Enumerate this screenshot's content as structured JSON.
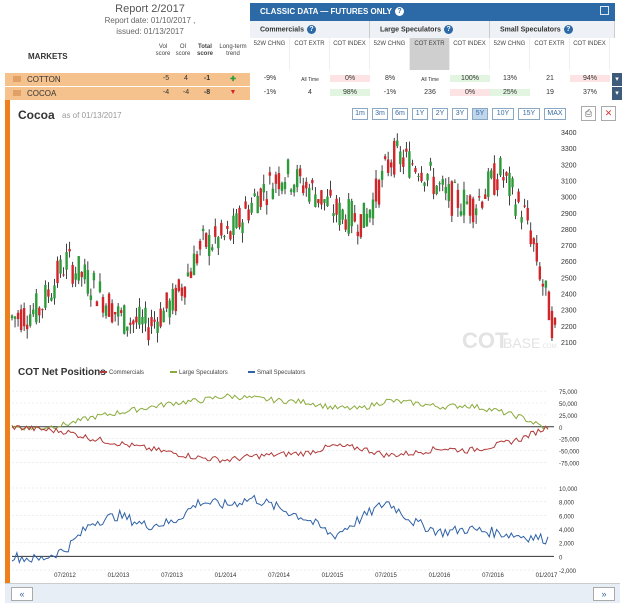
{
  "report": {
    "title": "Report 2/2017",
    "date": "Report date: 01/10/2017 ,",
    "issued": "issued: 01/13/2017"
  },
  "markets_label": "MARKETS",
  "score_headers": {
    "vol": "Vol score",
    "oi": "OI score",
    "total": "Total score",
    "trend": "Long-term trend"
  },
  "banner": {
    "title": "CLASSIC DATA — FUTURES ONLY",
    "q": "?"
  },
  "groups": [
    {
      "label": "Commercials",
      "q": "?"
    },
    {
      "label": "Large Speculators",
      "q": "?"
    },
    {
      "label": "Small Speculators",
      "q": "?"
    }
  ],
  "columns": [
    "52W CHNG",
    "COT EXTR",
    "COT INDEX",
    "52W CHNG",
    "COT EXTR",
    "COT INDEX",
    "52W CHNG",
    "COT EXTR",
    "COT INDEX"
  ],
  "rows": [
    {
      "name": "COTTON",
      "vol": "-5",
      "oi": "4",
      "total": "-1",
      "trend": "up",
      "cells": [
        "-9%",
        "All Time",
        "0%",
        "8%",
        "All Time",
        "100%",
        "13%",
        "21",
        "94%"
      ]
    },
    {
      "name": "COCOA",
      "vol": "-4",
      "oi": "-4",
      "total": "-8",
      "trend": "down",
      "cells": [
        "-1%",
        "4",
        "98%",
        "-1%",
        "236",
        "0%",
        "25%",
        "19",
        "37%"
      ]
    }
  ],
  "chart_title": "Cocoa",
  "chart_asof": "as of 01/13/2017",
  "timeframes": [
    "1m",
    "3m",
    "6m",
    "1Y",
    "2Y",
    "3Y",
    "5Y",
    "10Y",
    "15Y",
    "MAX"
  ],
  "active_timeframe": "5Y",
  "net_title": "COT Net Positions",
  "watermark": "COT",
  "watermark2": "BASE",
  "watermark3": ".COM",
  "colors": {
    "commercials": "#b03a3a",
    "large": "#8aab3c",
    "small": "#2f62a6",
    "up": "#2e9b3a",
    "down": "#d0262a",
    "accent": "#f07e1b"
  },
  "chart_data": [
    {
      "type": "candlestick",
      "title": "Cocoa",
      "x": [
        "2012-01",
        "2012-04",
        "2012-07",
        "2012-10",
        "2013-01",
        "2013-04",
        "2013-07",
        "2013-10",
        "2014-01",
        "2014-04",
        "2014-07",
        "2014-10",
        "2015-01",
        "2015-04",
        "2015-07",
        "2015-10",
        "2016-01",
        "2016-04",
        "2016-07",
        "2016-10",
        "2017-01"
      ],
      "values": [
        2250,
        2300,
        2600,
        2450,
        2250,
        2200,
        2350,
        2700,
        2750,
        3000,
        3150,
        3050,
        2900,
        2850,
        3250,
        3200,
        3000,
        2950,
        3150,
        2850,
        2150
      ],
      "ylim": [
        2050,
        3450
      ],
      "yticks": [
        2100,
        2200,
        2300,
        2400,
        2500,
        2600,
        2700,
        2800,
        2900,
        3000,
        3100,
        3200,
        3300,
        3400
      ]
    },
    {
      "type": "line",
      "title": "COT Net Positions",
      "x": [
        "2012-01",
        "2012-04",
        "2012-07",
        "2012-10",
        "2013-01",
        "2013-04",
        "2013-07",
        "2013-10",
        "2014-01",
        "2014-04",
        "2014-07",
        "2014-10",
        "2015-01",
        "2015-04",
        "2015-07",
        "2015-10",
        "2016-01",
        "2016-04",
        "2016-07",
        "2016-10",
        "2017-01"
      ],
      "series": [
        {
          "name": "Commercials",
          "values": [
            0,
            -5000,
            -10000,
            -25000,
            -35000,
            -45000,
            -55000,
            -65000,
            -70000,
            -62000,
            -58000,
            -55000,
            -40000,
            -45000,
            -60000,
            -55000,
            -45000,
            -50000,
            -40000,
            -25000,
            0
          ]
        },
        {
          "name": "Large Speculators",
          "values": [
            0,
            -3000,
            5000,
            20000,
            30000,
            40000,
            50000,
            55000,
            65000,
            60000,
            55000,
            52000,
            40000,
            38000,
            55000,
            50000,
            42000,
            45000,
            35000,
            20000,
            -5000
          ]
        },
        {
          "name": "Small Speculators",
          "values": [
            0,
            -500,
            1000,
            5000,
            6000,
            4500,
            5000,
            8000,
            7500,
            8500,
            7000,
            5500,
            3000,
            5500,
            8000,
            5000,
            3500,
            4000,
            3500,
            3000,
            2500
          ]
        }
      ],
      "ylim": [
        -95000,
        90000
      ],
      "yticks": [
        75000,
        50000,
        25000,
        0,
        -25000,
        -50000,
        -75000
      ],
      "yticks_small": [
        10000,
        8000,
        6000,
        4000,
        2000,
        0,
        -2000
      ],
      "xticks": [
        "07/2012",
        "01/2013",
        "07/2013",
        "01/2014",
        "07/2014",
        "01/2015",
        "07/2015",
        "01/2016",
        "07/2016",
        "01/2017"
      ]
    }
  ],
  "footer": {
    "left": "«",
    "right": "»"
  }
}
